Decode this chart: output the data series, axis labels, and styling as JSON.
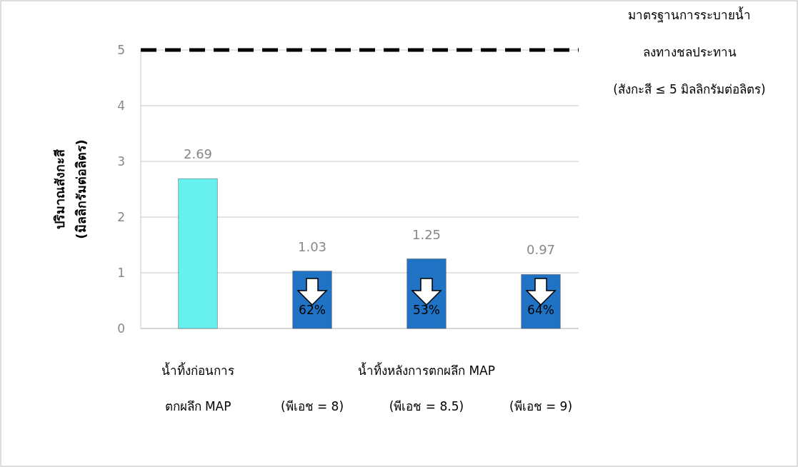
{
  "chart_data": {
    "type": "bar",
    "categories": [
      "น้ำทิ้งก่อนการ\nตกผลึก MAP",
      "(พีเอช = 8)",
      "(พีเอช = 8.5)",
      "(พีเอช = 9)"
    ],
    "values": [
      2.69,
      1.03,
      1.25,
      0.97
    ],
    "colors": [
      "#66f0ee",
      "#1f72c4",
      "#1f72c4",
      "#1f72c4"
    ],
    "ylabel": "ปริมาณสังกะสี\n(มิลลิกรัมต่อลิตร)",
    "ylim": [
      0,
      5
    ],
    "yticks": [
      0,
      1,
      2,
      3,
      4,
      5
    ],
    "grid": "y",
    "data_labels": true,
    "ref_lines": [
      {
        "axis": "y",
        "value": 5,
        "label": "มาตรฐานการระบายน้ำ\nลงทางชลประทาน\n(สังกะสี ≤ 5 มิลลิกรัมต่อลิตร)",
        "color": "#000000",
        "line_style": "dashed"
      }
    ],
    "annotations": [
      "น้ำทิ้งหลังการตกผลึก MAP",
      "62%",
      "53%",
      "64%"
    ]
  }
}
